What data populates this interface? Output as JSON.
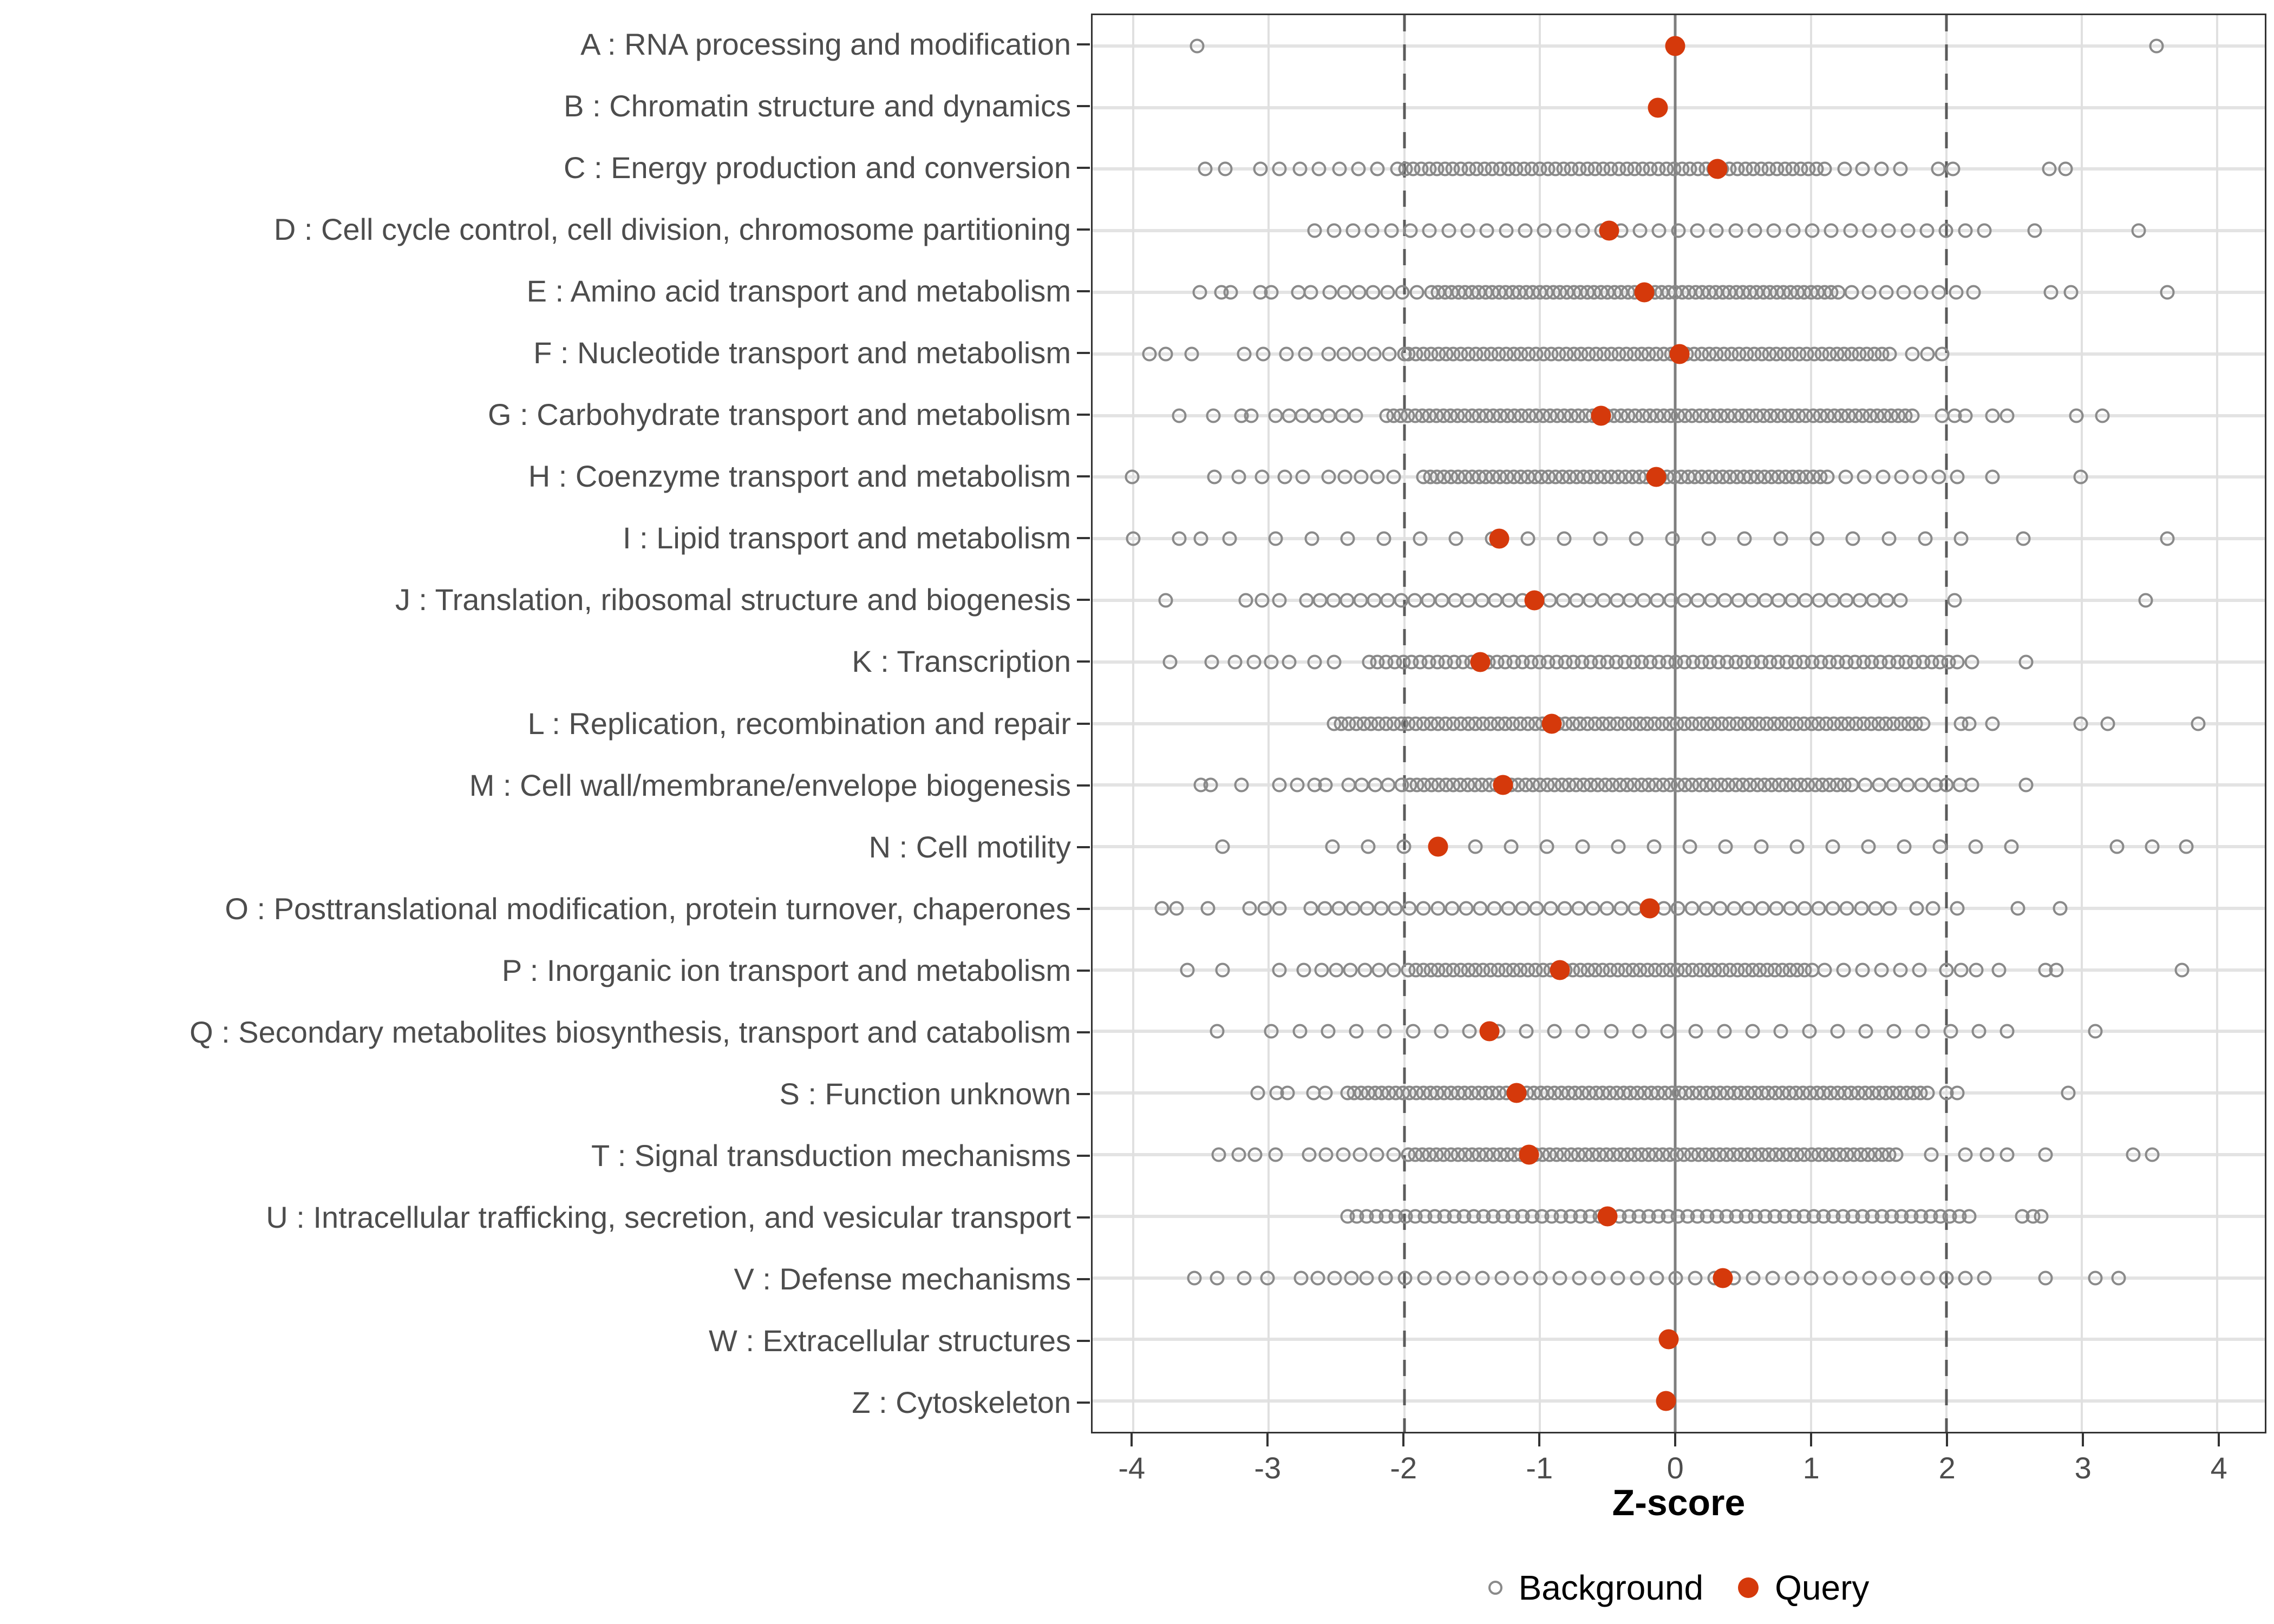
{
  "colors": {
    "background_point": "#8A8A8A",
    "query_point": "#D5390B",
    "axis_text": "#4D4D4D",
    "grid_major": "#E3E3E3",
    "ref_dashed": "#5B5B5B",
    "ref_zero": "#7E7E7E",
    "panel_border": "#333333"
  },
  "chart_data": {
    "type": "scatter",
    "subtype": "horizontal-strip-dotplot",
    "title": "",
    "xlabel": "Z-score",
    "ylabel": "",
    "xlim": [
      -4.3,
      4.35
    ],
    "x_ticks": [
      -4,
      -3,
      -2,
      -1,
      0,
      1,
      2,
      3,
      4
    ],
    "grid": "major-only",
    "reference_lines": {
      "solid": [
        0
      ],
      "dashed": [
        -2,
        2
      ]
    },
    "legend": {
      "position": "bottom-center",
      "items": [
        {
          "label": "Background",
          "marker": "open-circle",
          "color": "#8A8A8A"
        },
        {
          "label": "Query",
          "marker": "filled-circle",
          "color": "#D5390B"
        }
      ]
    },
    "categories": [
      {
        "label": "A : RNA processing and modification",
        "query": 0.0,
        "background_points": [
          -3.53,
          3.55
        ],
        "background_bands": []
      },
      {
        "label": "B : Chromatin structure and dynamics",
        "query": -0.13,
        "background_points": [],
        "background_bands": []
      },
      {
        "label": "C : Energy production and conversion",
        "query": 0.31,
        "background_points": [
          -3.47,
          -3.32,
          -3.06,
          -2.92,
          -2.77,
          -2.63,
          -2.48,
          -2.34,
          -2.2,
          1.25,
          1.38,
          1.52,
          1.66,
          1.94,
          2.05,
          2.76,
          2.88
        ],
        "background_bands": [
          {
            "from": -2.05,
            "to": 1.1,
            "n": 55
          }
        ]
      },
      {
        "label": "D : Cell cycle control, cell division, chromosome partitioning",
        "query": -0.49,
        "background_points": [
          2.65,
          3.42
        ],
        "background_bands": [
          {
            "from": -2.66,
            "to": 2.28,
            "n": 36
          }
        ]
      },
      {
        "label": "E : Amino acid transport and metabolism",
        "query": -0.23,
        "background_points": [
          -3.51,
          -3.35,
          -3.28,
          -3.06,
          -2.98,
          -2.78,
          -2.69,
          2.77,
          2.92,
          3.63
        ],
        "background_bands": [
          {
            "from": -2.55,
            "to": -1.8,
            "n": 8
          },
          {
            "from": -1.75,
            "to": 1.2,
            "n": 60
          },
          {
            "from": 1.3,
            "to": 2.2,
            "n": 8
          }
        ]
      },
      {
        "label": "F : Nucleotide transport and metabolism",
        "query": 0.03,
        "background_points": [
          -3.88,
          -3.76,
          -3.57,
          -3.18,
          -3.04,
          -2.87,
          -2.73,
          1.75,
          1.86,
          1.97
        ],
        "background_bands": [
          {
            "from": -2.56,
            "to": -2.0,
            "n": 6
          },
          {
            "from": -1.97,
            "to": 1.58,
            "n": 65
          }
        ]
      },
      {
        "label": "G : Carbohydrate transport and metabolism",
        "query": -0.55,
        "background_points": [
          -3.66,
          -3.41,
          -3.2,
          -3.13,
          1.97,
          2.06,
          2.14,
          2.34,
          2.45,
          2.96,
          3.15
        ],
        "background_bands": [
          {
            "from": -2.95,
            "to": -2.36,
            "n": 7
          },
          {
            "from": -2.13,
            "to": 1.75,
            "n": 75
          }
        ]
      },
      {
        "label": "H : Coenzyme transport and metabolism",
        "query": -0.14,
        "background_points": [
          -4.01,
          -3.4,
          -3.22,
          -3.05,
          -2.88,
          -2.75,
          2.34,
          2.99
        ],
        "background_bands": [
          {
            "from": -2.56,
            "to": -2.08,
            "n": 5
          },
          {
            "from": -1.86,
            "to": 1.07,
            "n": 58
          },
          {
            "from": 1.12,
            "to": 2.08,
            "n": 8
          }
        ]
      },
      {
        "label": "I : Lipid transport and metabolism",
        "query": -1.3,
        "background_points": [
          -4.0,
          -3.66,
          -3.5,
          -3.29,
          2.57,
          3.63
        ],
        "background_bands": [
          {
            "from": -2.95,
            "to": 2.11,
            "n": 20
          }
        ]
      },
      {
        "label": "J : Translation, ribosomal structure and biogenesis",
        "query": -1.04,
        "background_points": [
          -3.76,
          -3.17,
          -3.05,
          -2.92,
          2.06,
          3.47
        ],
        "background_bands": [
          {
            "from": -2.72,
            "to": 1.66,
            "n": 45
          }
        ]
      },
      {
        "label": "K : Transcription",
        "query": -1.44,
        "background_points": [
          -3.73,
          -3.42,
          -3.25,
          -3.11,
          -2.98,
          -2.85,
          -2.66,
          -2.52,
          2.19,
          2.59
        ],
        "background_bands": [
          {
            "from": -2.26,
            "to": 2.08,
            "n": 70
          }
        ]
      },
      {
        "label": "L : Replication, recombination and repair",
        "query": -0.91,
        "background_points": [
          2.11,
          2.17,
          2.34,
          2.99,
          3.19,
          3.86
        ],
        "background_bands": [
          {
            "from": -2.52,
            "to": 1.83,
            "n": 80
          }
        ]
      },
      {
        "label": "M : Cell wall/membrane/envelope biogenesis",
        "query": -1.27,
        "background_points": [
          -3.5,
          -3.43,
          -3.2,
          -2.92,
          -2.79,
          -2.66,
          -2.58,
          2.0,
          2.1,
          2.19,
          2.59
        ],
        "background_bands": [
          {
            "from": -2.41,
            "to": -2.02,
            "n": 5
          },
          {
            "from": -1.96,
            "to": 1.3,
            "n": 62
          },
          {
            "from": 1.4,
            "to": 1.92,
            "n": 6
          }
        ]
      },
      {
        "label": "N : Cell motility",
        "query": -1.75,
        "background_points": [
          -3.34,
          3.26,
          3.52,
          3.77
        ],
        "background_bands": [
          {
            "from": -2.53,
            "to": 2.48,
            "n": 20
          }
        ]
      },
      {
        "label": "O : Posttranslational modification, protein turnover, chaperones",
        "query": -0.19,
        "background_points": [
          -3.79,
          -3.68,
          -3.45,
          -3.14,
          -3.03,
          -2.92,
          1.78,
          1.9,
          2.08,
          2.53,
          2.84
        ],
        "background_bands": [
          {
            "from": -2.69,
            "to": 1.58,
            "n": 42
          }
        ]
      },
      {
        "label": "P : Inorganic ion transport and metabolism",
        "query": -0.85,
        "background_points": [
          -3.6,
          -3.34,
          -2.92,
          -2.74,
          2.0,
          2.11,
          2.22,
          2.39,
          2.73,
          2.81,
          3.74
        ],
        "background_bands": [
          {
            "from": -2.61,
            "to": -2.08,
            "n": 6
          },
          {
            "from": -1.97,
            "to": 1.01,
            "n": 55
          },
          {
            "from": 1.1,
            "to": 1.8,
            "n": 6
          }
        ]
      },
      {
        "label": "Q : Secondary metabolites biosynthesis, transport and catabolism",
        "query": -1.37,
        "background_points": [
          -3.38,
          3.1
        ],
        "background_bands": [
          {
            "from": -2.98,
            "to": 2.45,
            "n": 27
          }
        ]
      },
      {
        "label": "S : Function unknown",
        "query": -1.17,
        "background_points": [
          -3.08,
          -2.94,
          -2.86,
          -2.67,
          -2.58,
          2.0,
          2.08,
          2.9
        ],
        "background_bands": [
          {
            "from": -2.42,
            "to": 1.86,
            "n": 85
          }
        ]
      },
      {
        "label": "T : Signal transduction mechanisms",
        "query": -1.08,
        "background_points": [
          -3.37,
          -3.22,
          -3.1,
          -2.95,
          1.89,
          2.14,
          2.3,
          2.45,
          2.73,
          3.38,
          3.52
        ],
        "background_bands": [
          {
            "from": -2.7,
            "to": -2.08,
            "n": 6
          },
          {
            "from": -1.97,
            "to": 1.63,
            "n": 70
          }
        ]
      },
      {
        "label": "U : Intracellular trafficking, secretion, and vesicular transport",
        "query": -0.5,
        "background_points": [
          2.56,
          2.64,
          2.7
        ],
        "background_bands": [
          {
            "from": -2.42,
            "to": 2.17,
            "n": 65
          }
        ]
      },
      {
        "label": "V : Defense mechanisms",
        "query": 0.35,
        "background_points": [
          -3.55,
          -3.38,
          -3.18,
          -3.01,
          2.0,
          2.14,
          2.28,
          2.73,
          3.1,
          3.27
        ],
        "background_bands": [
          {
            "from": -2.76,
            "to": -2.39,
            "n": 4
          },
          {
            "from": -2.28,
            "to": 1.86,
            "n": 30
          }
        ]
      },
      {
        "label": "W : Extracellular structures",
        "query": -0.05,
        "background_points": [],
        "background_bands": []
      },
      {
        "label": "Z : Cytoskeleton",
        "query": -0.07,
        "background_points": [],
        "background_bands": []
      }
    ]
  }
}
